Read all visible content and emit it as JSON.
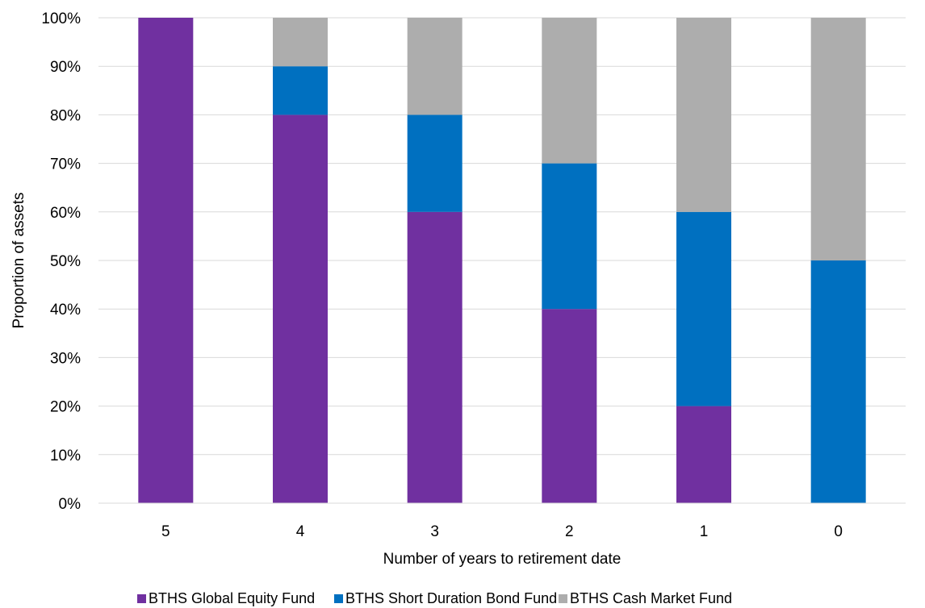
{
  "chart_data": {
    "type": "bar",
    "stacked": true,
    "percent_axis": true,
    "categories": [
      "5",
      "4",
      "3",
      "2",
      "1",
      "0"
    ],
    "series": [
      {
        "name": "BTHS Global Equity Fund",
        "values": [
          100,
          80,
          60,
          40,
          20,
          0
        ],
        "color": "#7030a0"
      },
      {
        "name": "BTHS Short Duration Bond Fund",
        "values": [
          0,
          10,
          20,
          30,
          40,
          50
        ],
        "color": "#0070c0"
      },
      {
        "name": "BTHS Cash Market Fund",
        "values": [
          0,
          10,
          20,
          30,
          40,
          50
        ],
        "color": "#adadad"
      }
    ],
    "title": "",
    "xlabel": "Number of years to retirement date",
    "ylabel": "Proportion of assets",
    "ylim": [
      0,
      100
    ],
    "y_ticks": [
      "0%",
      "10%",
      "20%",
      "30%",
      "40%",
      "50%",
      "60%",
      "70%",
      "80%",
      "90%",
      "100%"
    ],
    "grid": true,
    "legend": "bottom"
  }
}
